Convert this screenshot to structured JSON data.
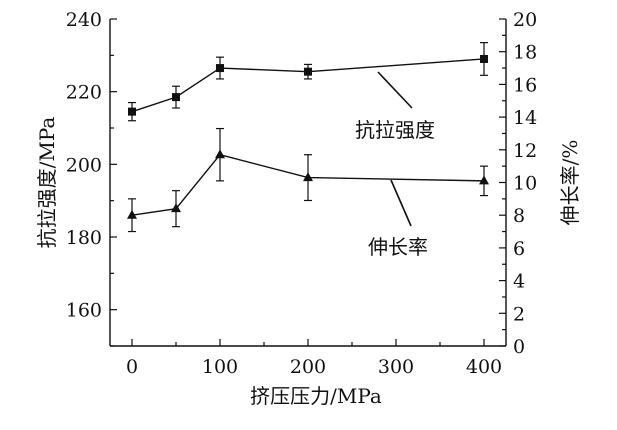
{
  "chart_data": {
    "type": "line",
    "xlabel": "挤压压力/MPa",
    "ylabel_left": "抗拉强度/MPa",
    "ylabel_right": "伸长率/%",
    "xlim": [
      -25,
      425
    ],
    "ylim_left": [
      150,
      240
    ],
    "ylim_right": [
      0,
      20
    ],
    "xticks": [
      0,
      100,
      200,
      300,
      400
    ],
    "yticks_left": [
      160,
      180,
      200,
      220,
      240
    ],
    "yticks_right": [
      0,
      2,
      4,
      6,
      8,
      10,
      12,
      14,
      16,
      18,
      20
    ],
    "grid": false,
    "series": [
      {
        "name": "抗拉强度",
        "axis": "left",
        "marker": "square",
        "x": [
          0,
          50,
          100,
          200,
          400
        ],
        "y": [
          214.5,
          218.5,
          226.5,
          225.5,
          229
        ],
        "err": [
          2.5,
          3.0,
          3.0,
          2.0,
          4.5
        ]
      },
      {
        "name": "伸长率",
        "axis": "right",
        "marker": "triangle",
        "x": [
          0,
          50,
          100,
          200,
          400
        ],
        "y": [
          8.0,
          8.4,
          11.7,
          10.3,
          10.1
        ],
        "err": [
          1.0,
          1.1,
          1.6,
          1.4,
          0.9
        ]
      }
    ],
    "annotations": [
      {
        "text": "抗拉强度",
        "series": 0
      },
      {
        "text": "伸长率",
        "series": 1
      }
    ]
  }
}
